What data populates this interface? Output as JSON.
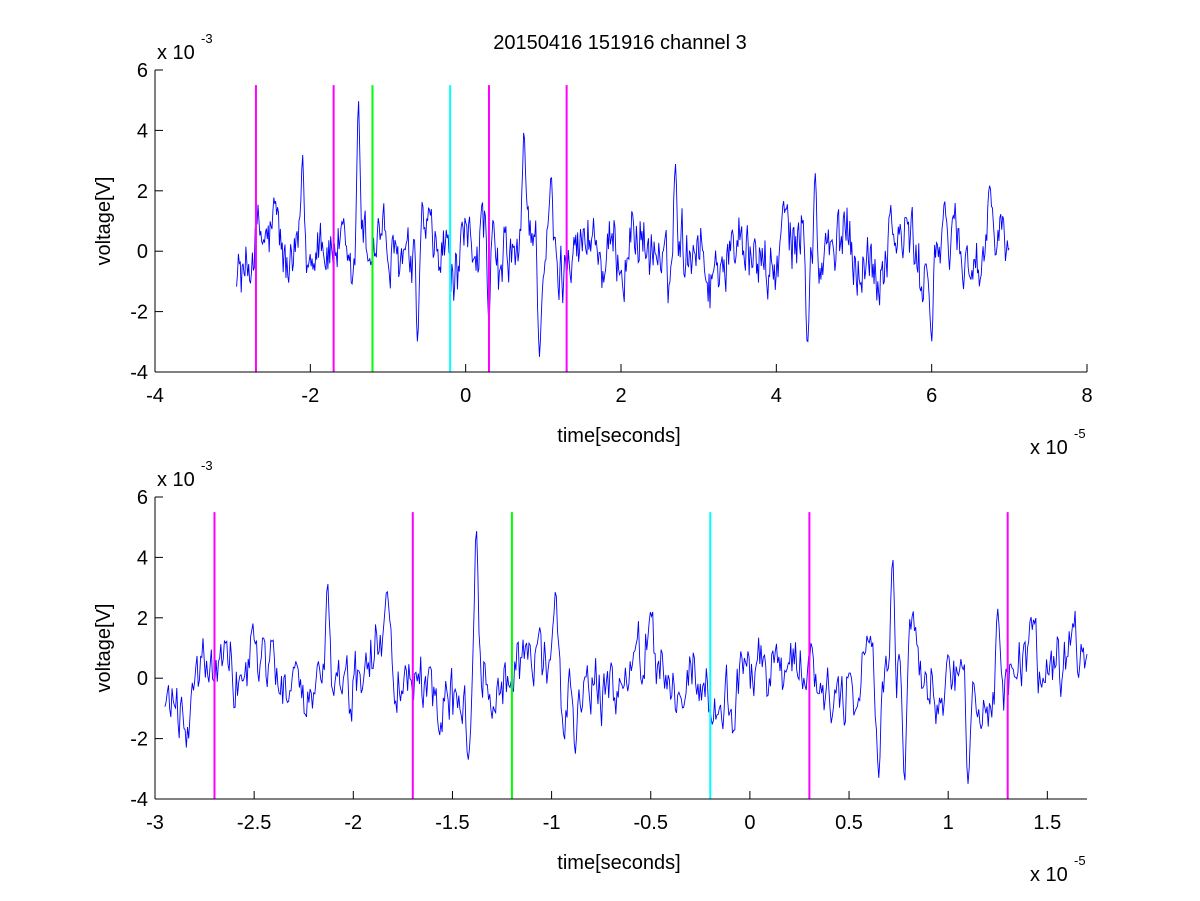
{
  "title": "20150416 151916 channel 3",
  "colors": {
    "signal": "#0000ff",
    "magenta": "#ff00ff",
    "green": "#00ff00",
    "cyan": "#00ffff",
    "axis": "#000000",
    "background": "#ffffff"
  },
  "chart_data": [
    {
      "type": "line",
      "title": "20150416 151916 channel 3",
      "xlabel": "time[seconds]",
      "ylabel": "voltage[V]",
      "x_exponent_label": "x 10",
      "x_exponent": "-5",
      "y_exponent_label": "x 10",
      "y_exponent": "-3",
      "xlim": [
        -4,
        8
      ],
      "ylim": [
        -4,
        6
      ],
      "x_units_scale": "1e-5",
      "y_units_scale": "1e-3",
      "xticks": [
        -4,
        -2,
        0,
        2,
        4,
        6,
        8
      ],
      "xtick_labels": [
        "-4",
        "-2",
        "0",
        "2",
        "4",
        "6",
        "8"
      ],
      "yticks": [
        -4,
        -2,
        0,
        2,
        4,
        6
      ],
      "ytick_labels": [
        "-4",
        "-2",
        "0",
        "2",
        "4",
        "6"
      ],
      "grid": false,
      "series": [
        {
          "x_start": -2.95,
          "x_end": 7.0,
          "y_min": -3.5,
          "y_max": 5.0,
          "peaks": [
            {
              "x": -2.1,
              "y": 3.2
            },
            {
              "x": -1.38,
              "y": 5.0
            },
            {
              "x": -0.62,
              "y": -3.0
            },
            {
              "x": 0.3,
              "y": -2.5
            },
            {
              "x": 0.75,
              "y": 4.0
            },
            {
              "x": 0.95,
              "y": -3.5
            },
            {
              "x": 1.1,
              "y": 2.5
            },
            {
              "x": 2.7,
              "y": 2.9
            },
            {
              "x": 4.4,
              "y": -3.1
            },
            {
              "x": 4.5,
              "y": 2.6
            },
            {
              "x": 6.0,
              "y": -3.0
            },
            {
              "x": 6.75,
              "y": 2.2
            }
          ]
        }
      ],
      "markers": [
        {
          "x": -2.7,
          "color": "magenta"
        },
        {
          "x": -1.7,
          "color": "magenta"
        },
        {
          "x": -1.2,
          "color": "green"
        },
        {
          "x": -0.2,
          "color": "cyan"
        },
        {
          "x": 0.3,
          "color": "magenta"
        },
        {
          "x": 1.3,
          "color": "magenta"
        }
      ],
      "marker_y_range": [
        -4,
        5.5
      ]
    },
    {
      "type": "line",
      "xlabel": "time[seconds]",
      "ylabel": "voltage[V]",
      "x_exponent_label": "x 10",
      "x_exponent": "-5",
      "y_exponent_label": "x 10",
      "y_exponent": "-3",
      "xlim": [
        -3.0,
        1.7
      ],
      "ylim": [
        -4,
        6
      ],
      "x_units_scale": "1e-5",
      "y_units_scale": "1e-3",
      "xticks": [
        -3,
        -2.5,
        -2,
        -1.5,
        -1,
        -0.5,
        0,
        0.5,
        1,
        1.5
      ],
      "xtick_labels": [
        "-3",
        "-2.5",
        "-2",
        "-1.5",
        "-1",
        "-0.5",
        "0",
        "0.5",
        "1",
        "1.5"
      ],
      "yticks": [
        -4,
        -2,
        0,
        2,
        4,
        6
      ],
      "ytick_labels": [
        "-4",
        "-2",
        "0",
        "2",
        "4",
        "6"
      ],
      "grid": false,
      "series": [
        {
          "x_start": -2.95,
          "x_end": 1.7,
          "y_min": -3.5,
          "y_max": 5.0,
          "peaks": [
            {
              "x": -2.13,
              "y": 3.2
            },
            {
              "x": -1.83,
              "y": 2.9
            },
            {
              "x": -1.38,
              "y": 5.0
            },
            {
              "x": -1.42,
              "y": -2.7
            },
            {
              "x": -0.98,
              "y": 2.9
            },
            {
              "x": -0.88,
              "y": -2.5
            },
            {
              "x": 0.72,
              "y": 4.0
            },
            {
              "x": 0.65,
              "y": -3.3
            },
            {
              "x": 0.78,
              "y": -3.5
            },
            {
              "x": 1.1,
              "y": -3.5
            },
            {
              "x": 1.25,
              "y": 2.3
            }
          ]
        }
      ],
      "markers": [
        {
          "x": -2.7,
          "color": "magenta"
        },
        {
          "x": -1.7,
          "color": "magenta"
        },
        {
          "x": -1.2,
          "color": "green"
        },
        {
          "x": -0.2,
          "color": "cyan"
        },
        {
          "x": 0.3,
          "color": "magenta"
        },
        {
          "x": 1.3,
          "color": "magenta"
        }
      ],
      "marker_y_range": [
        -4,
        5.5
      ]
    }
  ]
}
